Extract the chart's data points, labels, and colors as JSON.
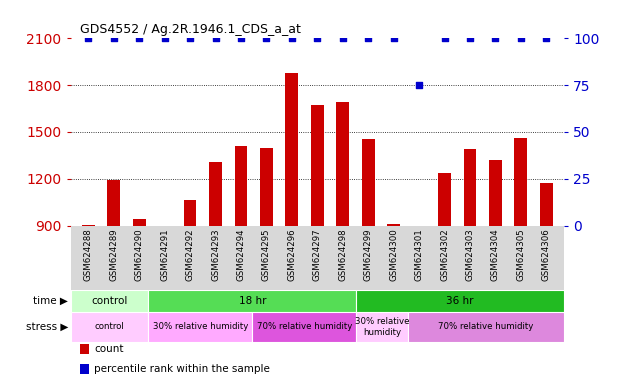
{
  "title": "GDS4552 / Ag.2R.1946.1_CDS_a_at",
  "samples": [
    "GSM624288",
    "GSM624289",
    "GSM624290",
    "GSM624291",
    "GSM624292",
    "GSM624293",
    "GSM624294",
    "GSM624295",
    "GSM624296",
    "GSM624297",
    "GSM624298",
    "GSM624299",
    "GSM624300",
    "GSM624301",
    "GSM624302",
    "GSM624303",
    "GSM624304",
    "GSM624305",
    "GSM624306"
  ],
  "counts": [
    905,
    1195,
    945,
    900,
    1065,
    1310,
    1410,
    1395,
    1880,
    1670,
    1695,
    1455,
    910,
    845,
    1240,
    1390,
    1320,
    1460,
    1175
  ],
  "percentiles": [
    100,
    100,
    100,
    100,
    100,
    100,
    100,
    100,
    100,
    100,
    100,
    100,
    100,
    75,
    100,
    100,
    100,
    100,
    100
  ],
  "bar_color": "#cc0000",
  "dot_color": "#0000cc",
  "ylim_left": [
    900,
    2100
  ],
  "ylim_right": [
    0,
    100
  ],
  "yticks_left": [
    900,
    1200,
    1500,
    1800,
    2100
  ],
  "yticks_right": [
    0,
    25,
    50,
    75,
    100
  ],
  "grid_lines": [
    1200,
    1500,
    1800
  ],
  "time_groups": [
    {
      "label": "control",
      "start": 0,
      "end": 3,
      "color": "#ccffcc"
    },
    {
      "label": "18 hr",
      "start": 3,
      "end": 11,
      "color": "#55dd55"
    },
    {
      "label": "36 hr",
      "start": 11,
      "end": 19,
      "color": "#22bb22"
    }
  ],
  "stress_groups": [
    {
      "label": "control",
      "start": 0,
      "end": 3,
      "color": "#ffccff"
    },
    {
      "label": "30% relative humidity",
      "start": 3,
      "end": 7,
      "color": "#ffaaff"
    },
    {
      "label": "70% relative humidity",
      "start": 7,
      "end": 11,
      "color": "#dd55dd"
    },
    {
      "label": "30% relative\nhumidity",
      "start": 11,
      "end": 13,
      "color": "#ffccff"
    },
    {
      "label": "70% relative humidity",
      "start": 13,
      "end": 19,
      "color": "#dd88dd"
    }
  ],
  "legend_items": [
    {
      "label": "count",
      "color": "#cc0000"
    },
    {
      "label": "percentile rank within the sample",
      "color": "#0000cc"
    }
  ],
  "tick_label_color": "#cc0000",
  "right_tick_color": "#0000cc",
  "background_color": "#ffffff",
  "tick_bg_color": "#d8d8d8",
  "plot_bg": "#ffffff"
}
